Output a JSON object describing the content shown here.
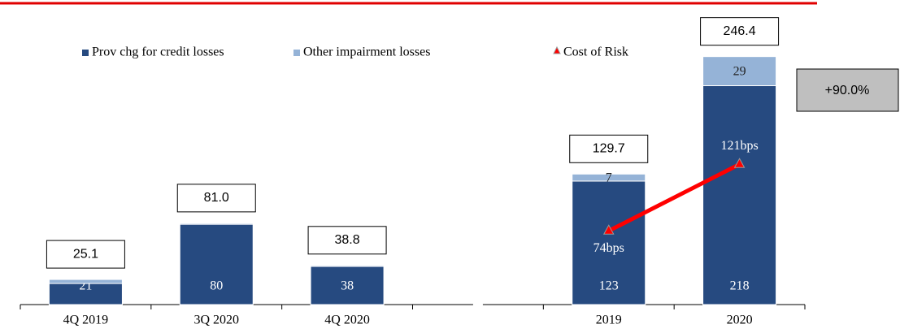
{
  "chart_data": {
    "type": "bar",
    "categories": [
      "4Q 2019",
      "3Q 2020",
      "4Q 2020",
      null,
      "2019",
      "2020"
    ],
    "series": [
      {
        "name": "Prov chg for credit losses",
        "color": "#264a80",
        "values": [
          21,
          80,
          38,
          null,
          123,
          218
        ]
      },
      {
        "name": "Other impairment losses",
        "color": "#95b3d7",
        "values": [
          4,
          1,
          1,
          null,
          7,
          29
        ],
        "value_labels": [
          null,
          null,
          null,
          null,
          "7",
          "29"
        ]
      },
      {
        "name": "Cost of Risk",
        "color": "#ff0000",
        "axis": "y2",
        "values": [
          null,
          null,
          null,
          null,
          74,
          121
        ],
        "value_labels": [
          null,
          null,
          null,
          null,
          "74bps",
          "121bps"
        ]
      }
    ],
    "totals": {
      "values": [
        25.1,
        81.0,
        38.8,
        null,
        129.7,
        246.4
      ],
      "value_labels": [
        "25.1",
        "81.0",
        "38.8",
        null,
        "129.7",
        "246.4"
      ]
    },
    "annotation": "+90.0%",
    "ylim": [
      0,
      271
    ],
    "y2lim": [
      22,
      214
    ],
    "legend": "top"
  }
}
